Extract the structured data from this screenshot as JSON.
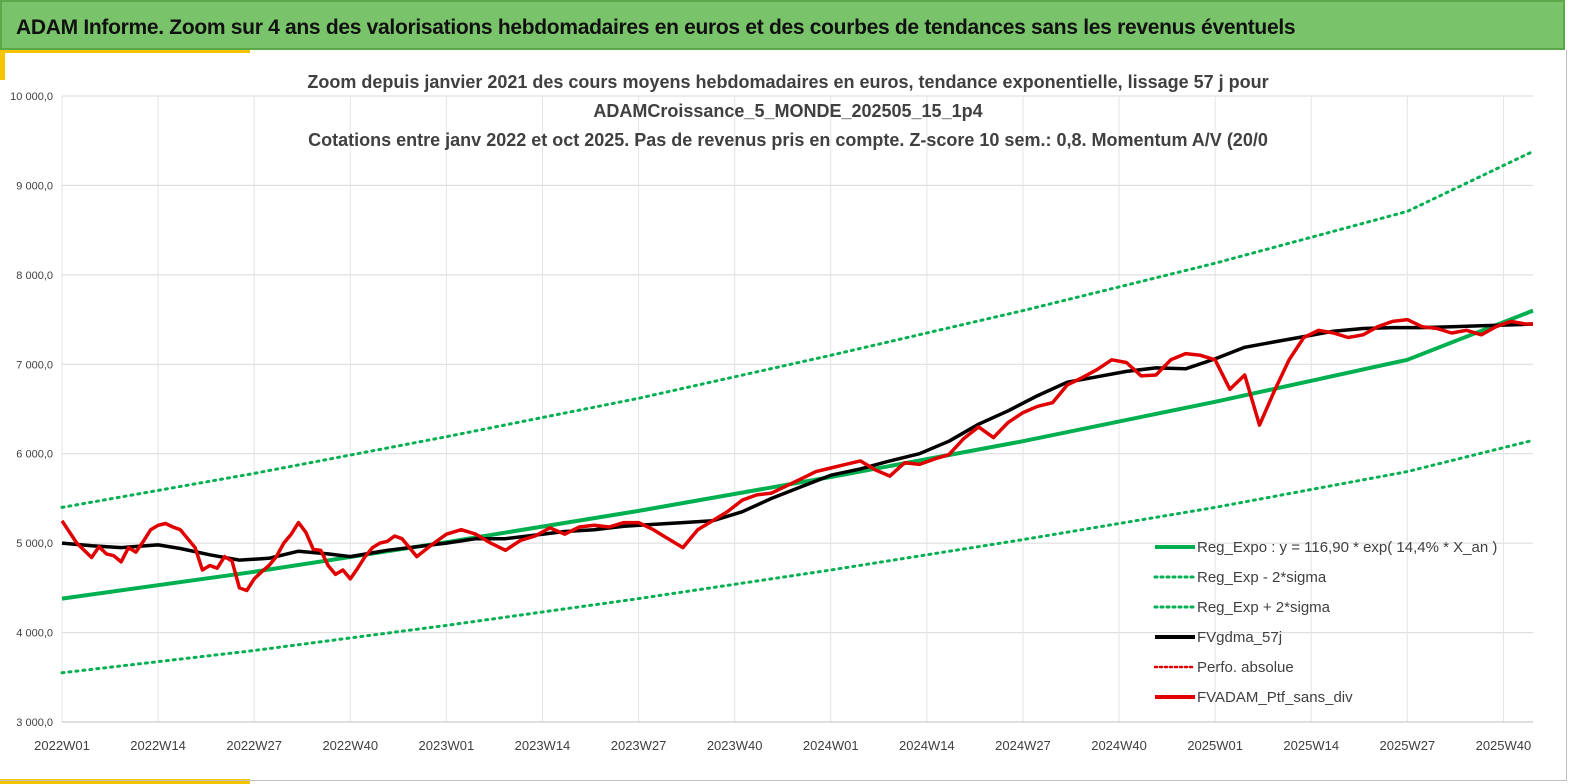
{
  "header": {
    "title": "ADAM Informe. Zoom sur 4 ans des valorisations hebdomadaires en euros et des courbes de tendances sans les revenus éventuels"
  },
  "colors": {
    "banner": "#79c36a",
    "accent": "#f5c400",
    "trend": "#00b050",
    "smoothed": "#000000",
    "portfolio": "#e00000"
  },
  "chart_data": {
    "type": "line",
    "title_lines": [
      "Zoom depuis janvier 2021 des cours moyens hebdomadaires  en euros, tendance exponentielle, lissage 57 j pour",
      "ADAMCroissance_5_MONDE_202505_15_1p4",
      "Cotations entre janv 2022 et oct 2025. Pas de revenus pris en compte. Z-score 10 sem.: 0,8. Momentum A/V (20/0"
    ],
    "ylim": [
      3000,
      10000
    ],
    "y_ticks": [
      "3 000,0",
      "4 000,0",
      "5 000,0",
      "6 000,0",
      "7 000,0",
      "8 000,0",
      "9 000,0",
      "10 000,0"
    ],
    "x_ticks": [
      "2022W01",
      "2022W14",
      "2022W27",
      "2022W40",
      "2023W01",
      "2023W14",
      "2023W27",
      "2023W40",
      "2024W01",
      "2024W14",
      "2024W27",
      "2024W40",
      "2025W01",
      "2025W14",
      "2025W27",
      "2025W40"
    ],
    "grid": true,
    "legend_position": "bottom-right",
    "legend": [
      "Reg_Expo : y = 116,90 * exp( 14,4% *  X_an )",
      "Reg_Exp - 2*sigma",
      "Reg_Exp + 2*sigma",
      "FVgdma_57j",
      "Perfo. absolue",
      "FVADAM_Ptf_sans_div"
    ],
    "series": [
      {
        "name": "Reg_Expo : y = 116,90 * exp( 14,4% *  X_an )",
        "x": [
          0,
          26,
          52,
          78,
          104,
          130,
          156,
          182,
          199
        ],
        "values": [
          4380,
          4680,
          5010,
          5360,
          5740,
          6140,
          6580,
          7050,
          7600
        ]
      },
      {
        "name": "Reg_Exp - 2*sigma",
        "x": [
          0,
          26,
          52,
          78,
          104,
          130,
          156,
          182,
          199
        ],
        "values": [
          3550,
          3800,
          4080,
          4380,
          4700,
          5040,
          5400,
          5800,
          6150
        ]
      },
      {
        "name": "Reg_Exp + 2*sigma",
        "x": [
          0,
          26,
          52,
          78,
          104,
          130,
          156,
          182,
          199
        ],
        "values": [
          5400,
          5780,
          6190,
          6620,
          7100,
          7600,
          8130,
          8710,
          9380
        ]
      },
      {
        "name": "FVgdma_57j",
        "x": [
          0,
          4,
          8,
          13,
          16,
          20,
          24,
          28,
          32,
          36,
          39,
          44,
          48,
          52,
          56,
          60,
          64,
          68,
          72,
          76,
          80,
          84,
          88,
          92,
          96,
          100,
          104,
          108,
          112,
          116,
          120,
          124,
          128,
          132,
          136,
          140,
          144,
          148,
          152,
          156,
          160,
          164,
          168,
          172,
          176,
          180,
          184,
          188,
          192,
          196,
          199
        ],
        "values": [
          5000,
          4970,
          4950,
          4980,
          4940,
          4870,
          4810,
          4830,
          4910,
          4880,
          4850,
          4920,
          4960,
          5000,
          5050,
          5050,
          5090,
          5130,
          5150,
          5190,
          5210,
          5230,
          5250,
          5350,
          5500,
          5630,
          5760,
          5830,
          5920,
          6000,
          6140,
          6330,
          6480,
          6650,
          6800,
          6860,
          6920,
          6960,
          6950,
          7060,
          7190,
          7250,
          7310,
          7370,
          7400,
          7410,
          7410,
          7420,
          7430,
          7440,
          7450
        ]
      },
      {
        "name": "FVADAM_Ptf_sans_div",
        "x": [
          0,
          2,
          4,
          5,
          6,
          7,
          8,
          9,
          10,
          11,
          12,
          13,
          14,
          15,
          16,
          17,
          18,
          19,
          20,
          21,
          22,
          23,
          24,
          25,
          26,
          27,
          28,
          29,
          30,
          31,
          32,
          33,
          34,
          35,
          36,
          37,
          38,
          39,
          40,
          41,
          42,
          43,
          44,
          45,
          46,
          47,
          48,
          50,
          52,
          54,
          56,
          58,
          60,
          62,
          64,
          66,
          68,
          70,
          72,
          74,
          76,
          78,
          80,
          82,
          84,
          86,
          88,
          90,
          92,
          94,
          96,
          98,
          100,
          102,
          104,
          106,
          108,
          110,
          112,
          114,
          116,
          118,
          120,
          122,
          124,
          126,
          128,
          130,
          132,
          134,
          136,
          138,
          140,
          142,
          144,
          146,
          148,
          150,
          152,
          154,
          156,
          158,
          160,
          162,
          164,
          166,
          168,
          170,
          172,
          174,
          176,
          178,
          180,
          182,
          184,
          186,
          188,
          190,
          192,
          194,
          196,
          198,
          199
        ],
        "values": [
          5250,
          5000,
          4840,
          4960,
          4880,
          4860,
          4790,
          4950,
          4900,
          5020,
          5150,
          5200,
          5220,
          5180,
          5150,
          5050,
          4950,
          4700,
          4750,
          4720,
          4850,
          4800,
          4500,
          4470,
          4600,
          4680,
          4750,
          4850,
          5000,
          5100,
          5230,
          5120,
          4930,
          4920,
          4750,
          4650,
          4700,
          4600,
          4720,
          4850,
          4950,
          5000,
          5020,
          5080,
          5050,
          4950,
          4850,
          4980,
          5100,
          5150,
          5100,
          5000,
          4920,
          5030,
          5080,
          5170,
          5100,
          5180,
          5200,
          5180,
          5230,
          5230,
          5150,
          5050,
          4950,
          5150,
          5250,
          5350,
          5480,
          5540,
          5560,
          5640,
          5720,
          5800,
          5840,
          5880,
          5920,
          5820,
          5750,
          5900,
          5880,
          5940,
          5990,
          6170,
          6300,
          6180,
          6350,
          6460,
          6530,
          6570,
          6770,
          6850,
          6940,
          7050,
          7020,
          6870,
          6880,
          7050,
          7120,
          7100,
          7050,
          6720,
          6880,
          6320,
          6700,
          7050,
          7300,
          7380,
          7350,
          7300,
          7330,
          7420,
          7480,
          7500,
          7420,
          7400,
          7350,
          7380,
          7330,
          7420,
          7480,
          7450,
          7450
        ]
      }
    ]
  }
}
